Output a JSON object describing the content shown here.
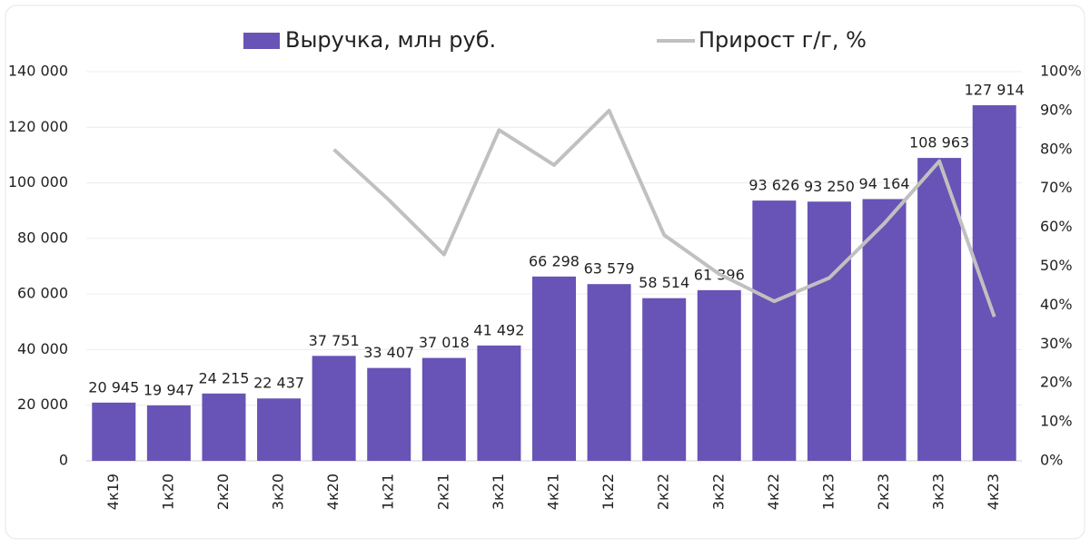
{
  "chart_data": {
    "type": "combo",
    "categories": [
      "4к19",
      "1к20",
      "2к20",
      "3к20",
      "4к20",
      "1к21",
      "2к21",
      "3к21",
      "4к21",
      "1к22",
      "2к22",
      "3к22",
      "4к22",
      "1к23",
      "2к23",
      "3к23",
      "4к23"
    ],
    "series": [
      {
        "name": "Выручка, млн руб.",
        "type": "bar",
        "color": "#6853b6",
        "values": [
          20945,
          19947,
          24215,
          22437,
          37751,
          33407,
          37018,
          41492,
          66298,
          63579,
          58514,
          61396,
          93626,
          93250,
          94164,
          108963,
          127914
        ],
        "value_labels": [
          "20 945",
          "19 947",
          "24 215",
          "22 437",
          "37 751",
          "33 407",
          "37 018",
          "41 492",
          "66 298",
          "63 579",
          "58 514",
          "61 396",
          "93 626",
          "93 250",
          "94 164",
          "108 963",
          "127 914"
        ]
      },
      {
        "name": "Прирост г/г, %",
        "type": "line",
        "color": "#c0c0c0",
        "axis": "y2",
        "values": [
          null,
          null,
          null,
          null,
          80,
          67,
          53,
          85,
          76,
          90,
          58,
          48,
          41,
          47,
          61,
          77,
          37
        ]
      }
    ],
    "ylim": [
      0,
      140000
    ],
    "yticks": [
      0,
      {
        "value": 20000,
        "label": "20 000"
      },
      {
        "value": 40000,
        "label": "40 000"
      },
      {
        "value": 60000,
        "label": "60 000"
      },
      {
        "value": 80000,
        "label": "80 000"
      },
      {
        "value": 100000,
        "label": "100 000"
      },
      {
        "value": 120000,
        "label": "120 000"
      },
      {
        "value": 140000,
        "label": "140 000"
      }
    ],
    "y2lim": [
      0,
      100
    ],
    "y2ticks": [
      {
        "value": 0,
        "label": "0%"
      },
      {
        "value": 10,
        "label": "10%"
      },
      {
        "value": 20,
        "label": "20%"
      },
      {
        "value": 30,
        "label": "30%"
      },
      {
        "value": 40,
        "label": "40%"
      },
      {
        "value": 50,
        "label": "50%"
      },
      {
        "value": 60,
        "label": "60%"
      },
      {
        "value": 70,
        "label": "70%"
      },
      {
        "value": 80,
        "label": "80%"
      },
      {
        "value": 90,
        "label": "90%"
      },
      {
        "value": 100,
        "label": "100%"
      }
    ],
    "grid": true,
    "legend": "top"
  }
}
